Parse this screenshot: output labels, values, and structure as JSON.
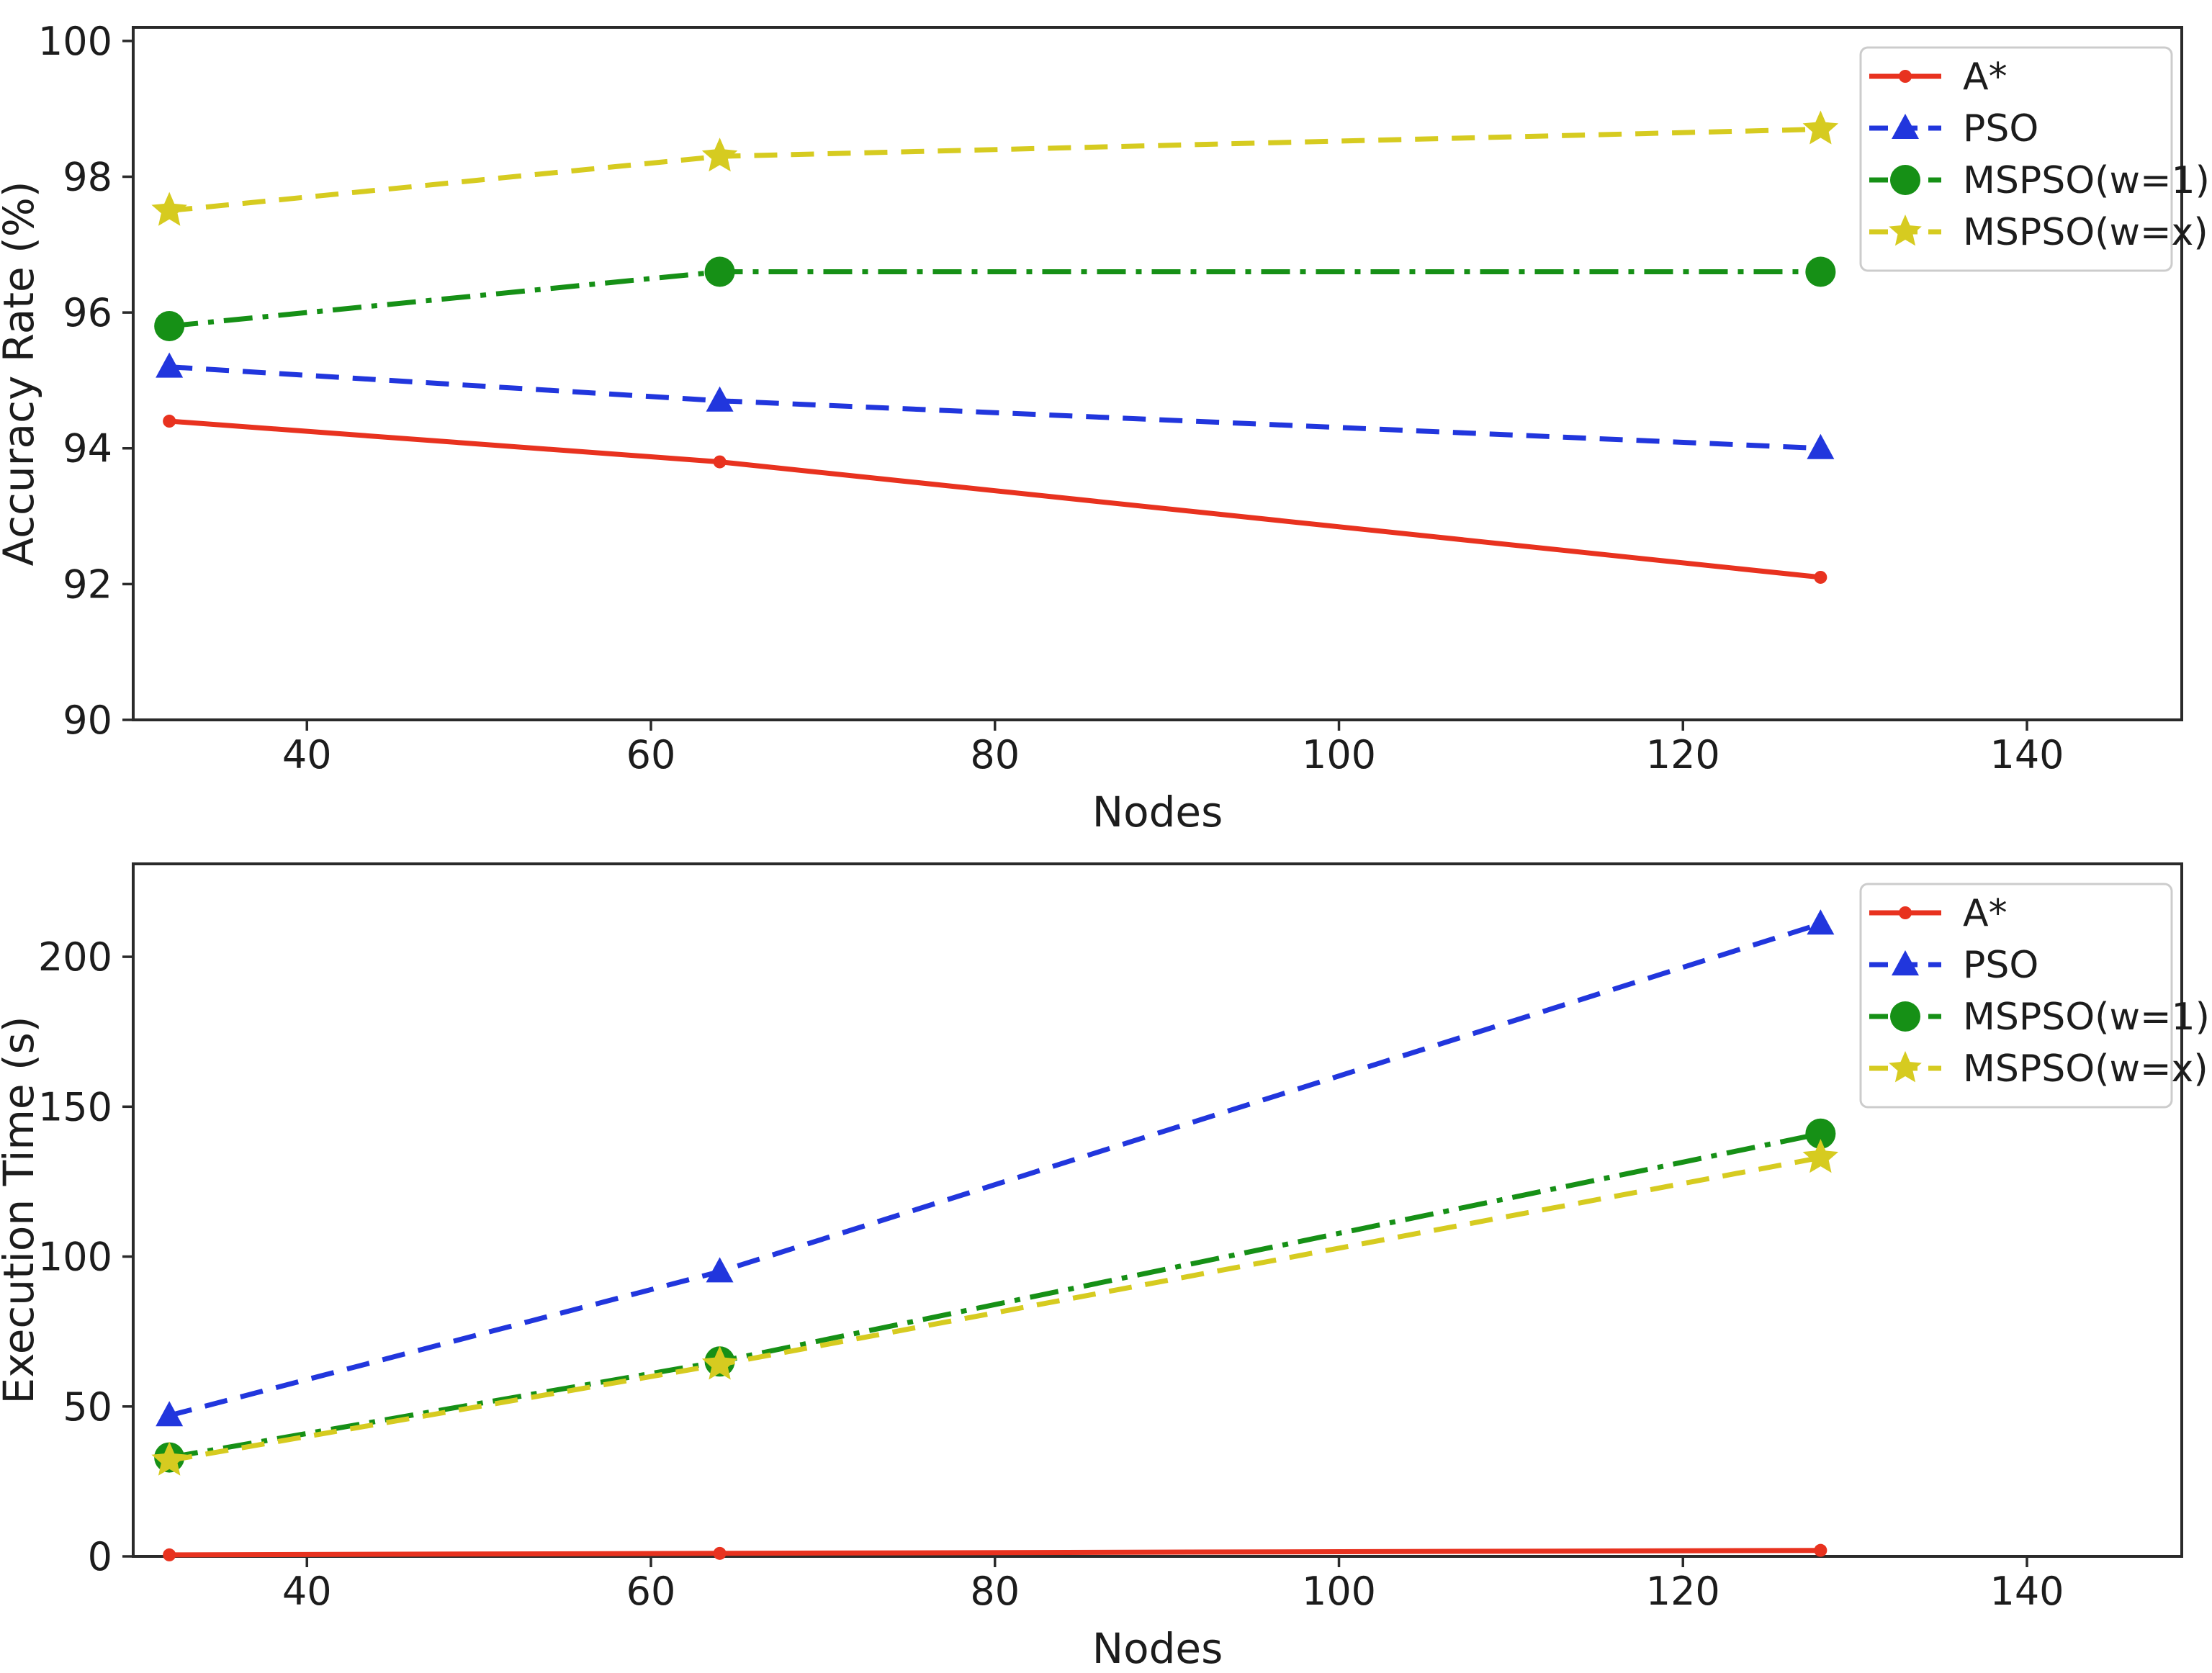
{
  "figure": {
    "background": "#ffffff",
    "spine_color": "#2a2a2a",
    "text_color": "#1c1c1c",
    "legend_border_color": "#cccccc",
    "legend_fill": "#ffffff"
  },
  "chart_data": [
    {
      "type": "line",
      "title": "",
      "xlabel": "Nodes",
      "ylabel": "Accuracy Rate (%)",
      "x": [
        32,
        64,
        128
      ],
      "series": [
        {
          "name": "A*",
          "values": [
            94.4,
            93.8,
            92.1
          ],
          "color": "#e8321f",
          "linestyle": "solid",
          "marker": "circle",
          "marker_size": 9
        },
        {
          "name": "PSO",
          "values": [
            95.2,
            94.7,
            94.0
          ],
          "color": "#2136dd",
          "linestyle": "dashed",
          "marker": "triangle",
          "marker_size": 20
        },
        {
          "name": "MSPSO(w=1)",
          "values": [
            95.8,
            96.6,
            96.6
          ],
          "color": "#169016",
          "linestyle": "dashdot",
          "marker": "circle",
          "marker_size": 21
        },
        {
          "name": "MSPSO(w=x)",
          "values": [
            97.5,
            98.3,
            98.7
          ],
          "color": "#d6cb20",
          "linestyle": "dashed",
          "marker": "star",
          "marker_size": 26
        }
      ],
      "xticks": [
        40,
        60,
        80,
        100,
        120,
        140
      ],
      "yticks": [
        90,
        92,
        94,
        96,
        98,
        100
      ],
      "xlim": [
        29.9,
        149.0
      ],
      "ylim": [
        90,
        100.2
      ],
      "grid": false,
      "legend_position": "upper right",
      "legend": [
        "A*",
        "PSO",
        "MSPSO(w=1)",
        "MSPSO(w=x)"
      ]
    },
    {
      "type": "line",
      "title": "",
      "xlabel": "Nodes",
      "ylabel": "Execution Time (s)",
      "x": [
        32,
        64,
        128
      ],
      "series": [
        {
          "name": "A*",
          "values": [
            0.5,
            1,
            2
          ],
          "color": "#e8321f",
          "linestyle": "solid",
          "marker": "circle",
          "marker_size": 9
        },
        {
          "name": "PSO",
          "values": [
            47,
            95,
            211
          ],
          "color": "#2136dd",
          "linestyle": "dashed",
          "marker": "triangle",
          "marker_size": 20
        },
        {
          "name": "MSPSO(w=1)",
          "values": [
            33,
            65,
            141
          ],
          "color": "#169016",
          "linestyle": "dashdot",
          "marker": "circle",
          "marker_size": 21
        },
        {
          "name": "MSPSO(w=x)",
          "values": [
            32,
            64,
            133
          ],
          "color": "#d6cb20",
          "linestyle": "dashed",
          "marker": "star",
          "marker_size": 26
        }
      ],
      "xticks": [
        40,
        60,
        80,
        100,
        120,
        140
      ],
      "yticks": [
        0,
        50,
        100,
        150,
        200
      ],
      "xlim": [
        29.9,
        149.0
      ],
      "ylim": [
        0,
        231
      ],
      "grid": false,
      "legend_position": "upper right",
      "legend": [
        "A*",
        "PSO",
        "MSPSO(w=1)",
        "MSPSO(w=x)"
      ]
    }
  ]
}
